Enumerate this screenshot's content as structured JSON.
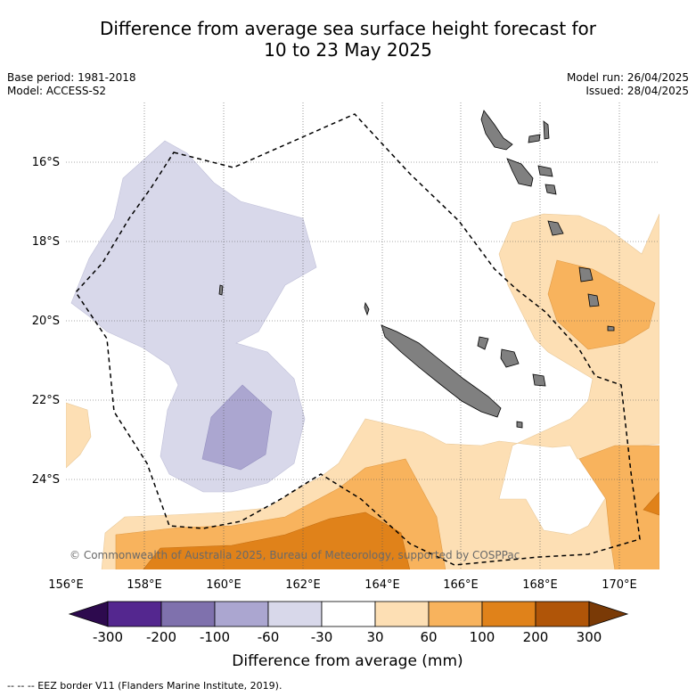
{
  "title_line1": "Difference from average sea surface height forecast for",
  "title_line2": "10 to 23 May 2025",
  "meta": {
    "base_period": "Base period: 1981-2018",
    "model": "Model: ACCESS-S2",
    "model_run": "Model run: 26/04/2025",
    "issued": "Issued: 28/04/2025"
  },
  "map": {
    "lat_labels": [
      "16°S",
      "18°S",
      "20°S",
      "22°S",
      "24°S"
    ],
    "lon_labels": [
      "156°E",
      "158°E",
      "160°E",
      "162°E",
      "164°E",
      "166°E",
      "168°E",
      "170°E"
    ],
    "copyright": "© Commonwealth of Australia 2025, Bureau of Meteorology, supported by COSPPac"
  },
  "colorbar": {
    "tick_labels": [
      "-300",
      "-200",
      "-100",
      "-60",
      "-30",
      "30",
      "60",
      "100",
      "200",
      "300"
    ],
    "colors": [
      "#2d0a4e",
      "#54278f",
      "#7f71ad",
      "#aba6d0",
      "#d8d8ea",
      "#ffffff",
      "#fddfb4",
      "#f8b35d",
      "#e0821a",
      "#b05508",
      "#7a3a06"
    ],
    "title": "Difference from average (mm)"
  },
  "footer": "--  --  -- EEZ border V11 (Flanders Marine Institute, 2019)."
}
